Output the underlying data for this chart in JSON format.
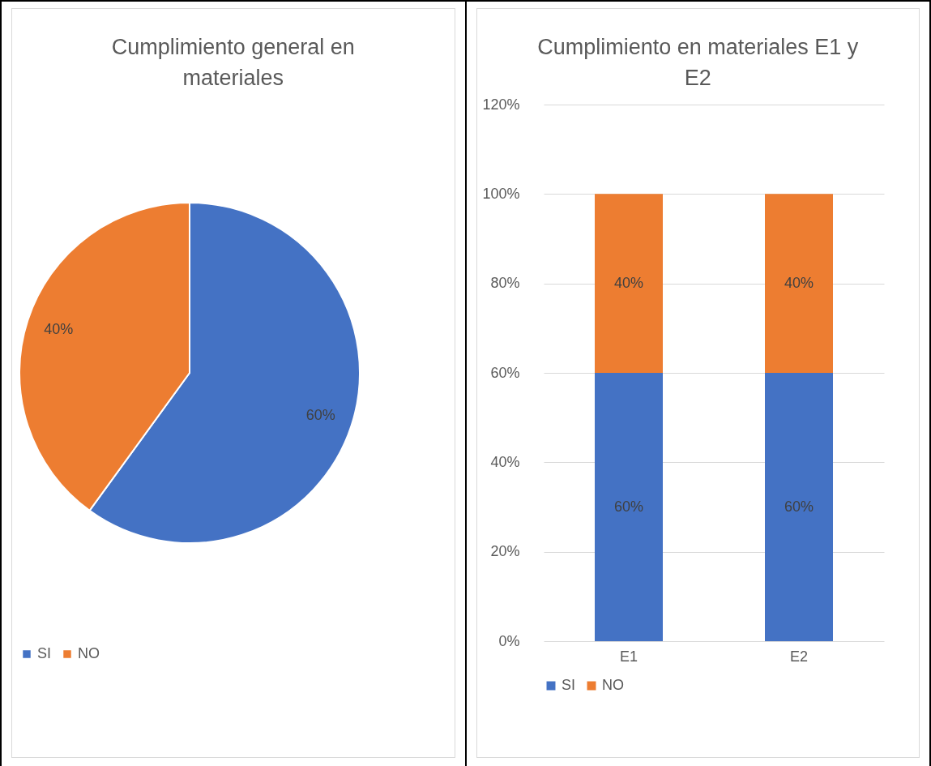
{
  "chart_data": [
    {
      "type": "pie",
      "title": "Cumplimiento general en materiales",
      "categories": [
        "SI",
        "NO"
      ],
      "values": [
        60,
        40
      ],
      "colors": [
        "#4472c4",
        "#ed7d31"
      ],
      "value_labels": [
        "60%",
        "40%"
      ],
      "legend": "bottom"
    },
    {
      "type": "bar",
      "title": "Cumplimiento en materiales E1 y E2",
      "categories": [
        "E1",
        "E2"
      ],
      "stacked": true,
      "series": [
        {
          "name": "SI",
          "color": "#4472c4",
          "values": [
            60,
            60
          ],
          "value_labels": [
            "60%",
            "60%"
          ]
        },
        {
          "name": "NO",
          "color": "#ed7d31",
          "values": [
            40,
            40
          ],
          "value_labels": [
            "40%",
            "40%"
          ]
        }
      ],
      "ylim": [
        0,
        120
      ],
      "yticks": [
        {
          "value": 0,
          "label": "0%"
        },
        {
          "value": 20,
          "label": "20%"
        },
        {
          "value": 40,
          "label": "40%"
        },
        {
          "value": 60,
          "label": "60%"
        },
        {
          "value": 80,
          "label": "80%"
        },
        {
          "value": 100,
          "label": "100%"
        },
        {
          "value": 120,
          "label": "120%"
        }
      ],
      "grid": "y",
      "legend": "bottom"
    }
  ]
}
